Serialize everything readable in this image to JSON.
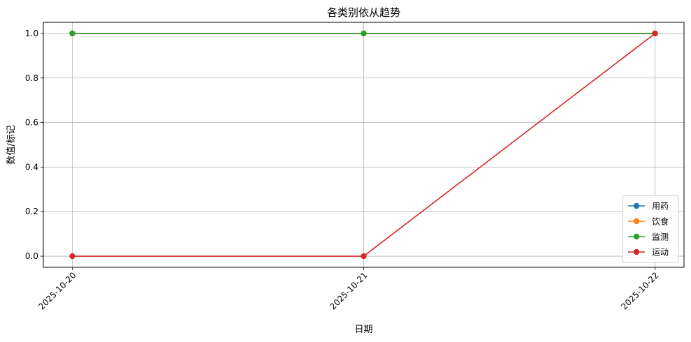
{
  "chart_data": {
    "type": "line",
    "title": "各类别依从趋势",
    "xlabel": "日期",
    "ylabel": "数值/标记",
    "categories": [
      "2025-10-20",
      "2025-10-21",
      "2025-10-22"
    ],
    "yticks": [
      "0.0",
      "0.2",
      "0.4",
      "0.6",
      "0.8",
      "1.0"
    ],
    "ylim": [
      -0.05,
      1.05
    ],
    "grid": true,
    "legend_position": "lower-right",
    "series": [
      {
        "name": "用药",
        "color": "#1f77b4",
        "values": [
          1,
          1,
          1
        ]
      },
      {
        "name": "饮食",
        "color": "#ff7f0e",
        "values": [
          1,
          1,
          1
        ]
      },
      {
        "name": "监测",
        "color": "#2ca02c",
        "values": [
          1,
          1,
          1
        ]
      },
      {
        "name": "运动",
        "color": "#d62728",
        "values": [
          0,
          0,
          1
        ]
      }
    ]
  }
}
